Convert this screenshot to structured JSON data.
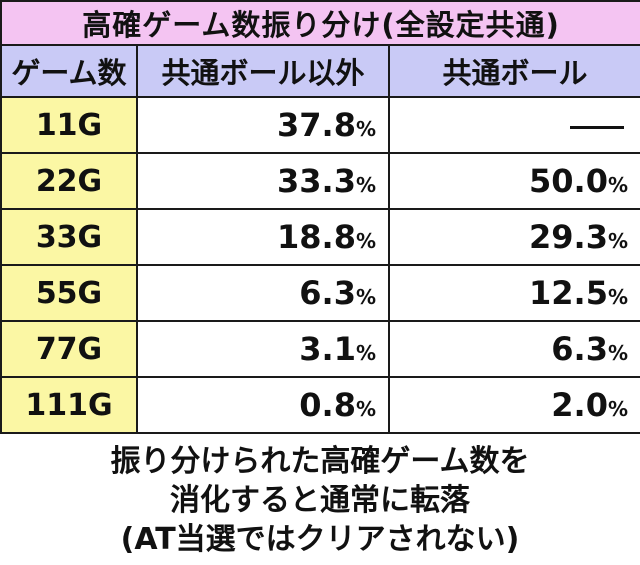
{
  "title": "高確ゲーム数振り分け(全設定共通)",
  "headers": {
    "game_count": "ゲーム数",
    "non_common_ball": "共通ボール以外",
    "common_ball": "共通ボール"
  },
  "percent_sign": "%",
  "rows": [
    {
      "games": "11G",
      "non_common": "37.8",
      "common": null
    },
    {
      "games": "22G",
      "non_common": "33.3",
      "common": "50.0"
    },
    {
      "games": "33G",
      "non_common": "18.8",
      "common": "29.3"
    },
    {
      "games": "55G",
      "non_common": "6.3",
      "common": "12.5"
    },
    {
      "games": "77G",
      "non_common": "3.1",
      "common": "6.3"
    },
    {
      "games": "111G",
      "non_common": "0.8",
      "common": "2.0"
    }
  ],
  "note": [
    "振り分けられた高確ゲーム数を",
    "消化すると通常に転落",
    "(AT当選ではクリアされない)"
  ],
  "colors": {
    "title_bg": "#f4c4f2",
    "header_bg": "#c9caf6",
    "game_col_bg": "#fbf7a4",
    "border": "#1a1a1a"
  }
}
